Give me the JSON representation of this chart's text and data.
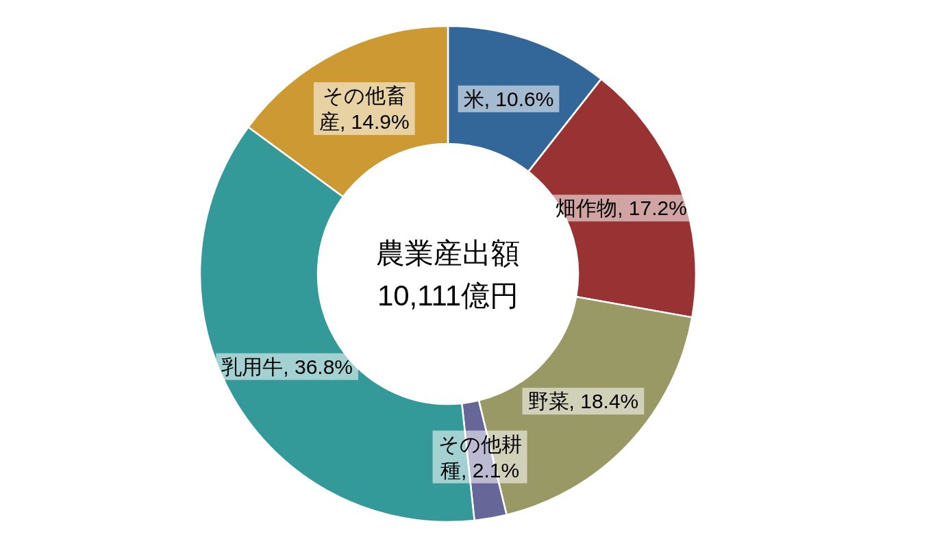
{
  "chart_data": {
    "type": "donut",
    "categories": [
      "米",
      "畑作物",
      "野菜",
      "その他耕種",
      "乳用牛",
      "その他畜産"
    ],
    "values": [
      10.6,
      17.2,
      18.4,
      2.1,
      36.8,
      14.9
    ],
    "colors": [
      "#336699",
      "#993333",
      "#999966",
      "#666699",
      "#339999",
      "#cc9933"
    ],
    "value_labels": [
      "10.6%",
      "17.2%",
      "18.4%",
      "2.1%",
      "36.8%",
      "14.9%"
    ],
    "annotations": [
      "農業産出額",
      "10,111億円"
    ],
    "legend": false
  }
}
